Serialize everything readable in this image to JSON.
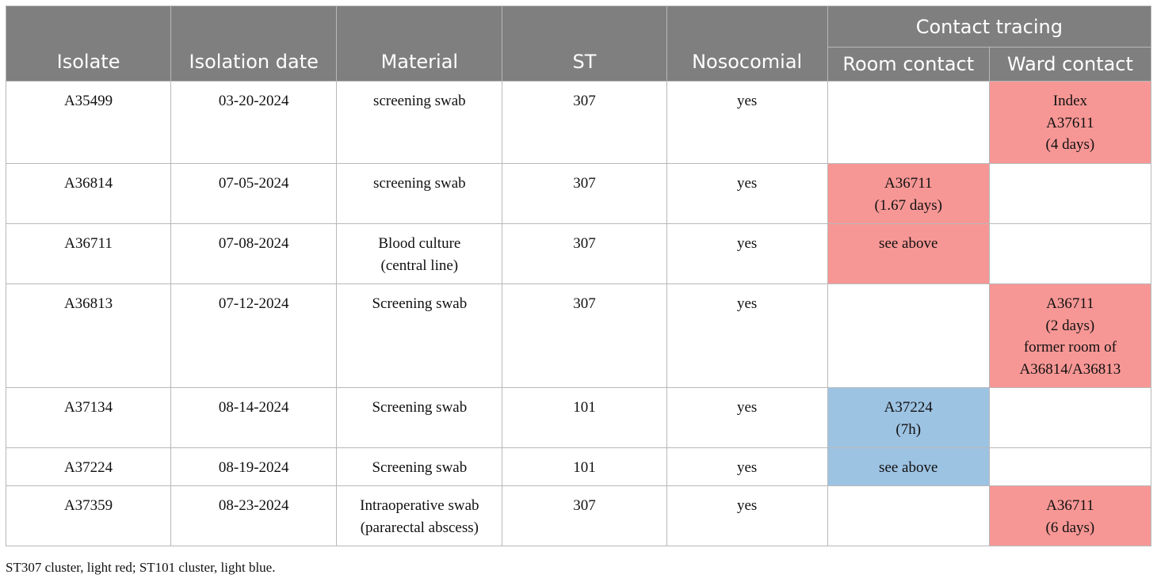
{
  "table": {
    "headers": {
      "isolate": "Isolate",
      "isolation_date": "Isolation date",
      "material": "Material",
      "st": "ST",
      "nosocomial": "Nosocomial",
      "contact_tracing": "Contact tracing",
      "room_contact": "Room contact",
      "ward_contact": "Ward contact"
    },
    "rows": [
      {
        "isolate": "A35499",
        "date": "03-20-2024",
        "material": [
          "screening swab"
        ],
        "st": "307",
        "nosocomial": "yes",
        "room": [],
        "room_color": "",
        "ward": [
          "Index",
          "A37611",
          "(4 days)"
        ],
        "ward_color": "light red"
      },
      {
        "isolate": "A36814",
        "date": "07-05-2024",
        "material": [
          "screening swab"
        ],
        "st": "307",
        "nosocomial": "yes",
        "room": [
          "A36711",
          "(1.67 days)"
        ],
        "room_color": "light red",
        "ward": [],
        "ward_color": ""
      },
      {
        "isolate": "A36711",
        "date": "07-08-2024",
        "material": [
          "Blood culture",
          "(central line)"
        ],
        "st": "307",
        "nosocomial": "yes",
        "room": [
          "see above"
        ],
        "room_color": "light red",
        "ward": [],
        "ward_color": ""
      },
      {
        "isolate": "A36813",
        "date": "07-12-2024",
        "material": [
          "Screening swab"
        ],
        "st": "307",
        "nosocomial": "yes",
        "room": [],
        "room_color": "",
        "ward": [
          "A36711",
          "(2 days)",
          "former room of",
          "A36814/A36813"
        ],
        "ward_color": "light red"
      },
      {
        "isolate": "A37134",
        "date": "08-14-2024",
        "material": [
          "Screening swab"
        ],
        "st": "101",
        "nosocomial": "yes",
        "room": [
          "A37224",
          "(7h)"
        ],
        "room_color": "light blue",
        "ward": [],
        "ward_color": ""
      },
      {
        "isolate": "A37224",
        "date": "08-19-2024",
        "material": [
          "Screening swab"
        ],
        "st": "101",
        "nosocomial": "yes",
        "room": [
          "see above"
        ],
        "room_color": "light blue",
        "ward": [],
        "ward_color": ""
      },
      {
        "isolate": "A37359",
        "date": "08-23-2024",
        "material": [
          "Intraoperative swab",
          "(pararectal abscess)"
        ],
        "st": "307",
        "nosocomial": "yes",
        "room": [],
        "room_color": "",
        "ward": [
          "A36711",
          "(6 days)"
        ],
        "ward_color": "light red"
      }
    ]
  },
  "colors": {
    "header_bg": "#7f7f7f",
    "light_red": "#f79795",
    "light_blue": "#9dc3e3"
  },
  "footnote": "ST307 cluster, light red; ST101 cluster, light blue."
}
